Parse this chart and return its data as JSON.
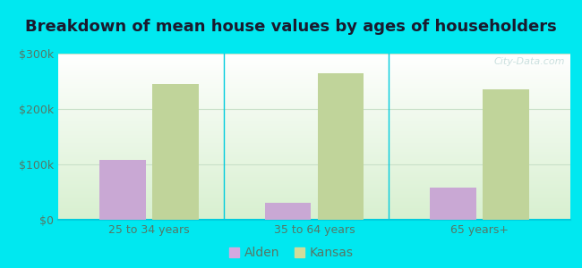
{
  "title": "Breakdown of mean house values by ages of householders",
  "categories": [
    "25 to 34 years",
    "35 to 64 years",
    "65 years+"
  ],
  "alden_values": [
    108000,
    30000,
    58000
  ],
  "kansas_values": [
    245000,
    265000,
    235000
  ],
  "alden_color": "#c9a8d4",
  "kansas_color": "#c0d49a",
  "ylim": [
    0,
    300000
  ],
  "yticks": [
    0,
    100000,
    200000,
    300000
  ],
  "ytick_labels": [
    "$0",
    "$100k",
    "$200k",
    "$300k"
  ],
  "background_outer": "#00e8f0",
  "background_inner_top": "#ffffff",
  "background_inner_bottom": "#d8f0d0",
  "bar_width": 0.28,
  "legend_labels": [
    "Alden",
    "Kansas"
  ],
  "legend_color_alden": "#d4a8e0",
  "legend_color_kansas": "#d0dc9a",
  "title_fontsize": 13,
  "tick_fontsize": 9,
  "legend_fontsize": 10,
  "tick_color": "#557766",
  "title_color": "#1a1a2e",
  "separator_color": "#00ccdd",
  "grid_color": "#c8e0c8"
}
